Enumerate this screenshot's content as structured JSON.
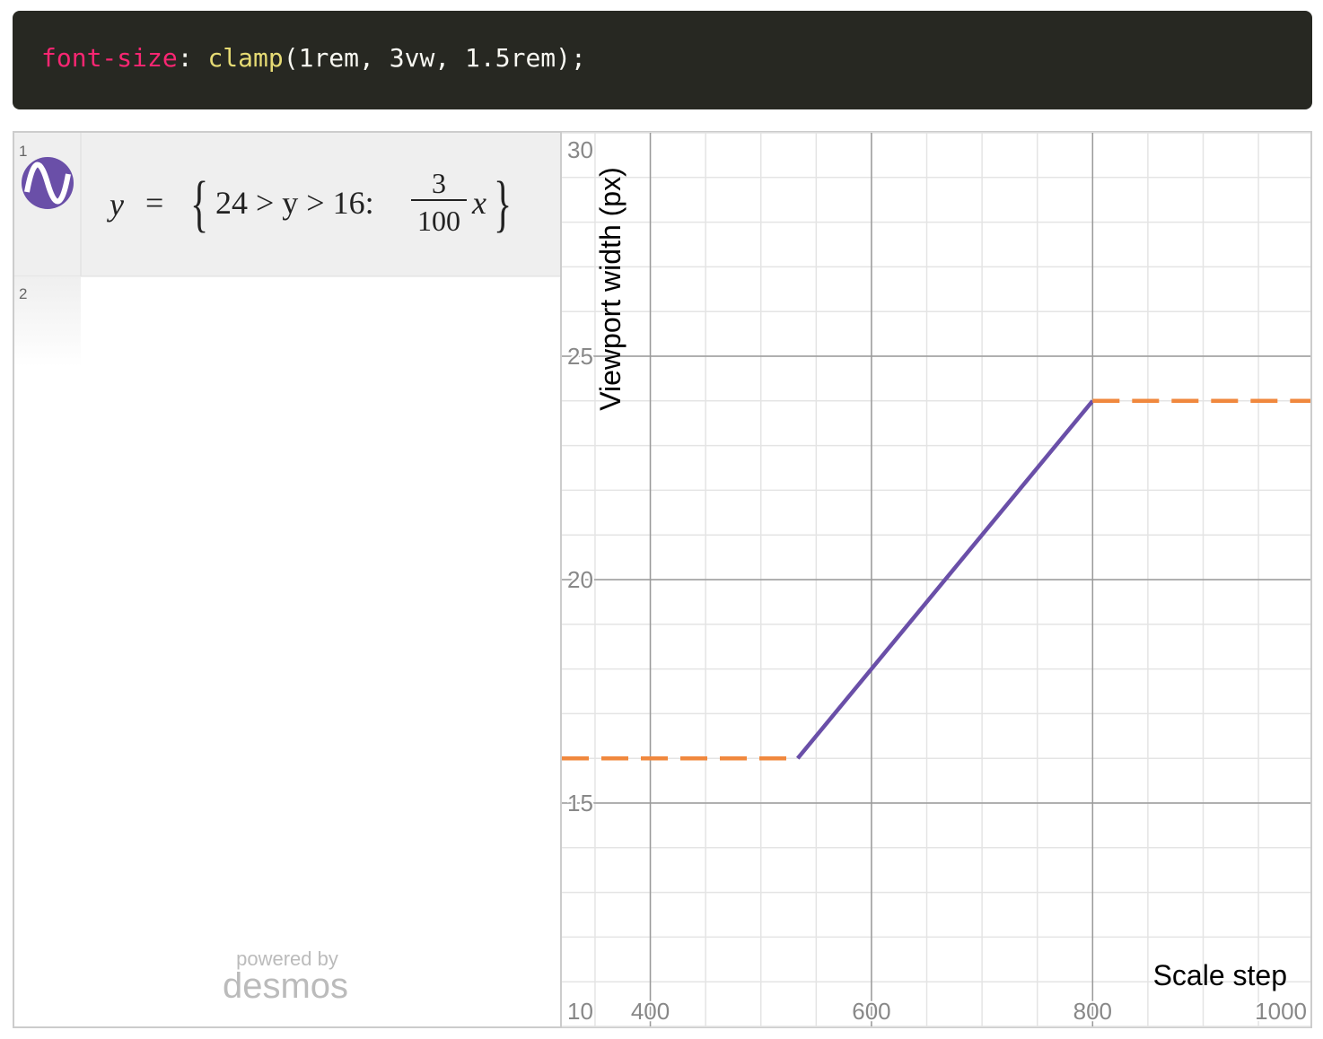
{
  "code": {
    "property": "font-size",
    "colon": ":",
    "function": "clamp",
    "args": "(1rem, 3vw, 1.5rem);"
  },
  "expressions": [
    {
      "number": "1",
      "lhs": "y",
      "equals": "=",
      "condition": "24 > y > 16:",
      "numerator": "3",
      "denominator": "100",
      "variable": "x"
    },
    {
      "number": "2"
    }
  ],
  "branding": {
    "powered_by": "powered by",
    "name": "desmos"
  },
  "chart_data": {
    "type": "line",
    "x_label": "Scale step",
    "y_label": "Viewport width (px)",
    "xlim": [
      320,
      997
    ],
    "ylim": [
      10,
      30
    ],
    "xticks": [
      400,
      600,
      800,
      1000
    ],
    "yticks": [
      10,
      15,
      20,
      25,
      30
    ],
    "grid": true,
    "minor_grid": {
      "x": 50,
      "y": 1
    },
    "series": [
      {
        "color": "#6a4fa8",
        "dashed": false,
        "x": [
          533.3,
          800
        ],
        "values": [
          16,
          24
        ]
      },
      {
        "color": "#f0883e",
        "dashed": true,
        "x": [
          320,
          533.3
        ],
        "values": [
          16,
          16
        ]
      },
      {
        "color": "#f0883e",
        "dashed": true,
        "x": [
          800,
          997
        ],
        "values": [
          24,
          24
        ]
      }
    ]
  }
}
